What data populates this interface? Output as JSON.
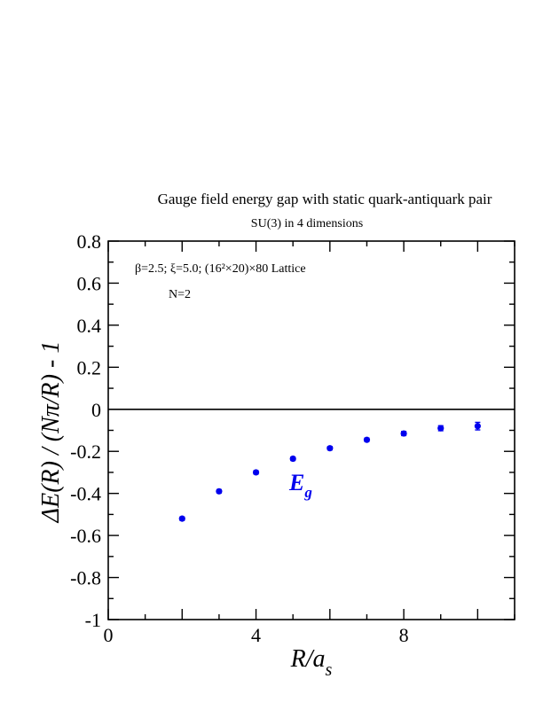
{
  "title": "Gauge field energy gap with static quark-antiquark pair",
  "subtitle": "SU(3) in 4 dimensions",
  "annotations": {
    "params": "β=2.5;  ξ=5.0;  (16²×20)×80 Lattice",
    "n_label": "N=2",
    "series_label_main": "E",
    "series_label_sub": "g"
  },
  "colors": {
    "series": "#0000ee",
    "axis": "#000000"
  },
  "chart_data": {
    "type": "scatter",
    "title": "Gauge field energy gap with static quark-antiquark pair",
    "subtitle": "SU(3) in 4 dimensions",
    "xlabel": "R/a_s",
    "ylabel": "ΔE(R) / (Nπ/R) - 1",
    "xlim": [
      0,
      11
    ],
    "ylim": [
      -1,
      0.8
    ],
    "x_ticks": [
      "0",
      "4",
      "8"
    ],
    "y_ticks": [
      "-1",
      "-0.8",
      "-0.6",
      "-0.4",
      "-0.2",
      "0",
      "0.2",
      "0.4",
      "0.6",
      "0.8"
    ],
    "zero_line": true,
    "grid": false,
    "series": [
      {
        "name": "E_g",
        "x": [
          2,
          3,
          4,
          5,
          6,
          7,
          8,
          9,
          10
        ],
        "y": [
          -0.52,
          -0.39,
          -0.3,
          -0.235,
          -0.185,
          -0.145,
          -0.115,
          -0.09,
          -0.08
        ],
        "err": [
          0.008,
          0.008,
          0.008,
          0.008,
          0.008,
          0.008,
          0.01,
          0.012,
          0.018
        ]
      }
    ]
  }
}
